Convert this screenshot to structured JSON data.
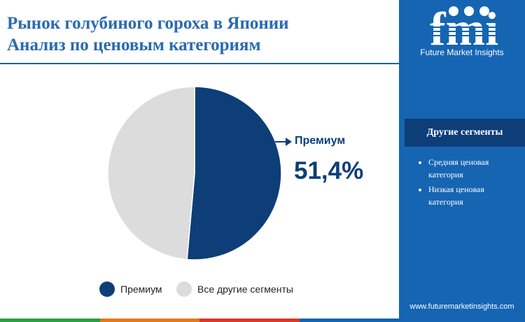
{
  "header": {
    "title_line1": "Рынок голубиного гороха в Японии",
    "title_line2": "Анализ по ценовым категориям"
  },
  "brand": {
    "logo_text": "fmi",
    "tagline": "Future Market Insights",
    "website": "www.futuremarketinsights.com"
  },
  "sidebar": {
    "segments_title": "Другие сегменты",
    "segments": [
      "Средняя ценовая категория",
      "Низкая ценовая категория"
    ]
  },
  "callout": {
    "label": "Премиум",
    "value": "51,4%"
  },
  "chart_data": {
    "type": "pie",
    "categories": [
      "Премиум",
      "Все другие сегменты"
    ],
    "values": [
      51.4,
      48.6
    ],
    "colors": [
      "#0d3e78",
      "#dcdcdc"
    ],
    "legend_position": "bottom"
  },
  "colors": {
    "title": "#2a6ab0",
    "sidebar": "#1565b3",
    "primary": "#0d3e78",
    "secondary": "#dcdcdc",
    "bottom_bar": [
      "#2e9e44",
      "#e07a1f",
      "#d63a2a",
      "#1565b3"
    ]
  }
}
